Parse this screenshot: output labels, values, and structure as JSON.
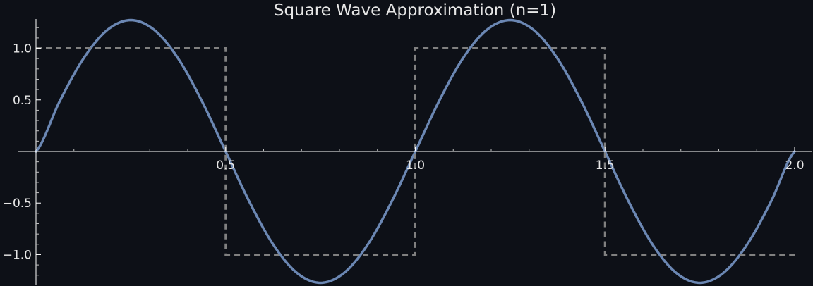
{
  "colors": {
    "background": "#0d1017",
    "axis": "#ffffff",
    "text": "#e6e6e6",
    "approximation": "#6b87b3",
    "square_wave": "#808080"
  },
  "chart_data": {
    "type": "line",
    "title": "Square Wave Approximation (n=1)",
    "xlabel": "",
    "ylabel": "",
    "xlim": [
      0,
      2
    ],
    "ylim": [
      -1.27,
      1.27
    ],
    "grid": false,
    "legend": "none",
    "x_ticks": [
      0.5,
      1.0,
      1.5,
      2.0
    ],
    "x_tick_labels": [
      "0.5",
      "1.0",
      "1.5",
      "2.0"
    ],
    "y_ticks": [
      -1.0,
      -0.5,
      0.5,
      1.0
    ],
    "y_tick_labels": [
      "−1.0",
      "−0.5",
      "0.5",
      "1.0"
    ],
    "series": [
      {
        "style": "solid",
        "color": "#6b87b3",
        "x": [
          0,
          0.0625,
          0.125,
          0.1875,
          0.25,
          0.3125,
          0.375,
          0.4375,
          0.5,
          0.5625,
          0.625,
          0.6875,
          0.75,
          0.8125,
          0.875,
          0.9375,
          1.0,
          1.0625,
          1.125,
          1.1875,
          1.25,
          1.3125,
          1.375,
          1.4375,
          1.5,
          1.5625,
          1.625,
          1.6875,
          1.75,
          1.8125,
          1.875,
          1.9375,
          2.0
        ],
        "y": [
          0,
          0.487,
          0.9,
          1.176,
          1.273,
          1.176,
          0.9,
          0.487,
          0,
          -0.487,
          -0.9,
          -1.176,
          -1.273,
          -1.176,
          -0.9,
          -0.487,
          0,
          0.487,
          0.9,
          1.176,
          1.273,
          1.176,
          0.9,
          0.487,
          0,
          -0.487,
          -0.9,
          -1.176,
          -1.273,
          -1.176,
          -0.9,
          -0.487,
          0
        ]
      },
      {
        "style": "dashed",
        "color": "#808080",
        "x": [
          0,
          0.5,
          0.5,
          1.0,
          1.0,
          1.5,
          1.5,
          2.0
        ],
        "y": [
          1,
          1,
          -1,
          -1,
          1,
          1,
          -1,
          -1
        ]
      }
    ]
  }
}
